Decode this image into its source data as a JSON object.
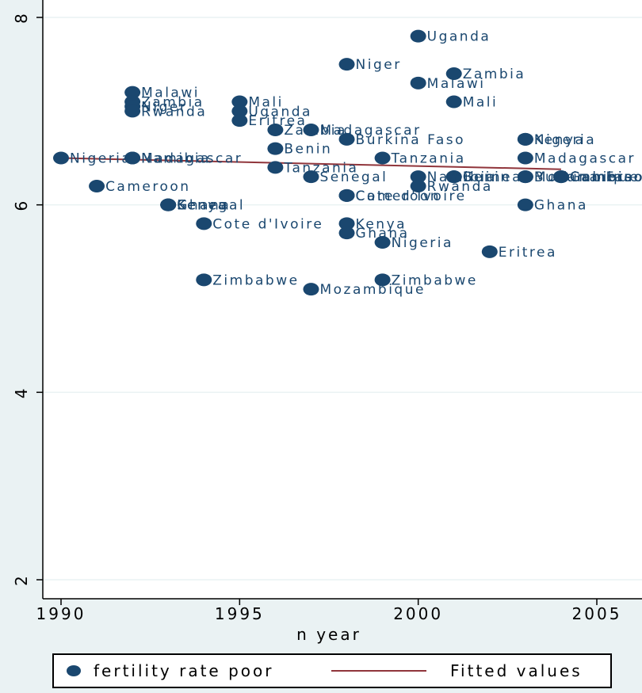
{
  "chart_data": {
    "type": "scatter",
    "xlabel": "n year",
    "ylabel": "",
    "xlim": [
      1990,
      2005
    ],
    "ylim": [
      2,
      8
    ],
    "x_ticks": [
      1990,
      1995,
      2000,
      2005
    ],
    "y_ticks": [
      2,
      4,
      6,
      8
    ],
    "grid": true,
    "legend_position": "bottom",
    "colors": {
      "points": "#1a476f",
      "fit_line": "#90353b",
      "plot_bg": "#ffffff",
      "page_bg": "#eaf2f3"
    },
    "series": [
      {
        "name": "fertility rate poor",
        "points": [
          {
            "x": 1990,
            "y": 6.5,
            "label": "Nigeria"
          },
          {
            "x": 1991,
            "y": 6.2,
            "label": "Cameroon"
          },
          {
            "x": 1992,
            "y": 7.2,
            "label": "Malawi"
          },
          {
            "x": 1992,
            "y": 7.1,
            "label": "Zambia"
          },
          {
            "x": 1992,
            "y": 7.05,
            "label": "Niger"
          },
          {
            "x": 1992,
            "y": 7.0,
            "label": "Rwanda"
          },
          {
            "x": 1992,
            "y": 6.5,
            "label": "Madagascar"
          },
          {
            "x": 1992,
            "y": 6.5,
            "label": "Namibia"
          },
          {
            "x": 1993,
            "y": 6.0,
            "label": "Senegal"
          },
          {
            "x": 1993,
            "y": 6.0,
            "label": "Ghana"
          },
          {
            "x": 1993,
            "y": 6.0,
            "label": "Kenya"
          },
          {
            "x": 1994,
            "y": 5.8,
            "label": "Cote d'Ivoire"
          },
          {
            "x": 1994,
            "y": 5.2,
            "label": "Zimbabwe"
          },
          {
            "x": 1995,
            "y": 7.1,
            "label": "Mali"
          },
          {
            "x": 1995,
            "y": 7.0,
            "label": "Uganda"
          },
          {
            "x": 1995,
            "y": 6.9,
            "label": "Eritrea"
          },
          {
            "x": 1996,
            "y": 6.8,
            "label": "Zambia"
          },
          {
            "x": 1996,
            "y": 6.6,
            "label": "Benin"
          },
          {
            "x": 1996,
            "y": 6.4,
            "label": "Tanzania"
          },
          {
            "x": 1997,
            "y": 6.8,
            "label": "Madagascar"
          },
          {
            "x": 1997,
            "y": 6.3,
            "label": "Senegal"
          },
          {
            "x": 1997,
            "y": 5.1,
            "label": "Mozambique"
          },
          {
            "x": 1998,
            "y": 7.5,
            "label": "Niger"
          },
          {
            "x": 1998,
            "y": 6.7,
            "label": "Burkina Faso"
          },
          {
            "x": 1998,
            "y": 6.1,
            "label": "Cameroon"
          },
          {
            "x": 1998,
            "y": 6.1,
            "label": "Cote d'Ivoire"
          },
          {
            "x": 1998,
            "y": 5.8,
            "label": "Kenya"
          },
          {
            "x": 1998,
            "y": 5.7,
            "label": "Ghana"
          },
          {
            "x": 1999,
            "y": 6.5,
            "label": "Tanzania"
          },
          {
            "x": 1999,
            "y": 5.6,
            "label": "Nigeria"
          },
          {
            "x": 1999,
            "y": 5.2,
            "label": "Zimbabwe"
          },
          {
            "x": 2000,
            "y": 7.8,
            "label": "Uganda"
          },
          {
            "x": 2000,
            "y": 7.3,
            "label": "Malawi"
          },
          {
            "x": 2000,
            "y": 6.3,
            "label": "Namibia"
          },
          {
            "x": 2000,
            "y": 6.2,
            "label": "Rwanda"
          },
          {
            "x": 2001,
            "y": 7.4,
            "label": "Zambia"
          },
          {
            "x": 2001,
            "y": 7.1,
            "label": "Mali"
          },
          {
            "x": 2001,
            "y": 6.3,
            "label": "Benin"
          },
          {
            "x": 2001,
            "y": 6.3,
            "label": "Guinea"
          },
          {
            "x": 2002,
            "y": 5.5,
            "label": "Eritrea"
          },
          {
            "x": 2003,
            "y": 6.7,
            "label": "Nigeria"
          },
          {
            "x": 2003,
            "y": 6.7,
            "label": "Kenya"
          },
          {
            "x": 2003,
            "y": 6.5,
            "label": "Madagascar"
          },
          {
            "x": 2003,
            "y": 6.3,
            "label": "Burkina Faso"
          },
          {
            "x": 2003,
            "y": 6.3,
            "label": "Mozambique"
          },
          {
            "x": 2003,
            "y": 6.0,
            "label": "Ghana"
          },
          {
            "x": 2004,
            "y": 6.3,
            "label": "Cameroon"
          },
          {
            "x": 2004,
            "y": 6.3,
            "label": "Gambia"
          }
        ]
      },
      {
        "name": "Fitted values",
        "type": "line",
        "points": [
          {
            "x": 1990,
            "y": 6.5
          },
          {
            "x": 2004,
            "y": 6.38
          }
        ]
      }
    ]
  },
  "legend": {
    "items": [
      {
        "label": "fertility rate poor"
      },
      {
        "label": "Fitted values"
      }
    ]
  }
}
